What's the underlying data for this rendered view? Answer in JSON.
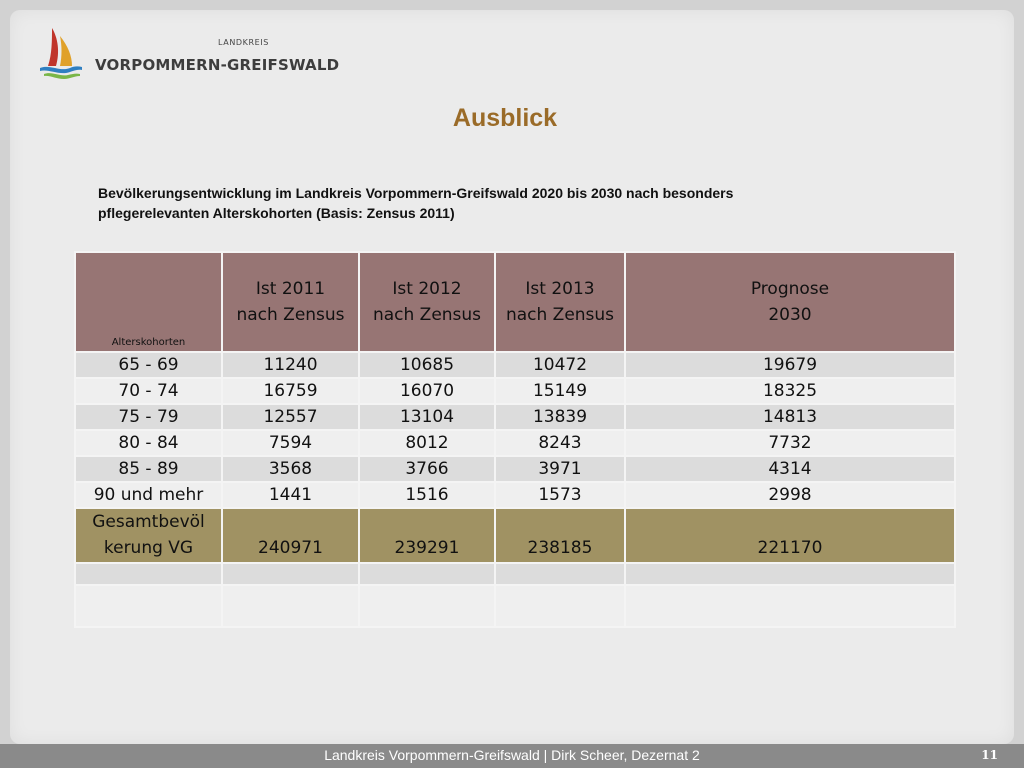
{
  "header": {
    "logo_small": "LANDKREIS",
    "logo_name": "VORPOMMERN-GREIFSWALD"
  },
  "slide": {
    "title": "Ausblick",
    "subtitle_line1": "Bevölkerungsentwicklung im Landkreis Vorpommern-Greifswald 2020 bis 2030 nach besonders",
    "subtitle_line2": "pflegerelevanten Alterskohorten (Basis: Zensus 2011)"
  },
  "table": {
    "headers": [
      {
        "line1": "Alterskohorten",
        "line2": ""
      },
      {
        "line1": "Ist 2011",
        "line2": "nach Zensus"
      },
      {
        "line1": "Ist 2012",
        "line2": "nach Zensus"
      },
      {
        "line1": "Ist 2013",
        "line2": "nach Zensus"
      },
      {
        "line1": "Prognose",
        "line2": "2030"
      }
    ],
    "rows": [
      [
        "65 - 69",
        "11240",
        "10685",
        "10472",
        "19679"
      ],
      [
        "70 - 74",
        "16759",
        "16070",
        "15149",
        "18325"
      ],
      [
        "75 - 79",
        "12557",
        "13104",
        "13839",
        "14813"
      ],
      [
        "80 - 84",
        "7594",
        "8012",
        "8243",
        "7732"
      ],
      [
        "85 - 89",
        "3568",
        "3766",
        "3971",
        "4314"
      ],
      [
        "90 und mehr",
        "1441",
        "1516",
        "1573",
        "2998"
      ]
    ],
    "total": {
      "label_line1": "Gesamtbevöl",
      "label_line2": "kerung VG",
      "values": [
        "240971",
        "239291",
        "238185",
        "221170"
      ]
    }
  },
  "footer": {
    "text": "Landkreis Vorpommern-Greifswald | Dirk Scheer, Dezernat 2",
    "page_number": "11"
  },
  "colors": {
    "header_row": "#977574",
    "total_row": "#a09263",
    "title": "#9a6b28",
    "footer_bar": "#8a8a8a"
  },
  "icons": {
    "logo": "sailboat-waves-logo-icon"
  }
}
